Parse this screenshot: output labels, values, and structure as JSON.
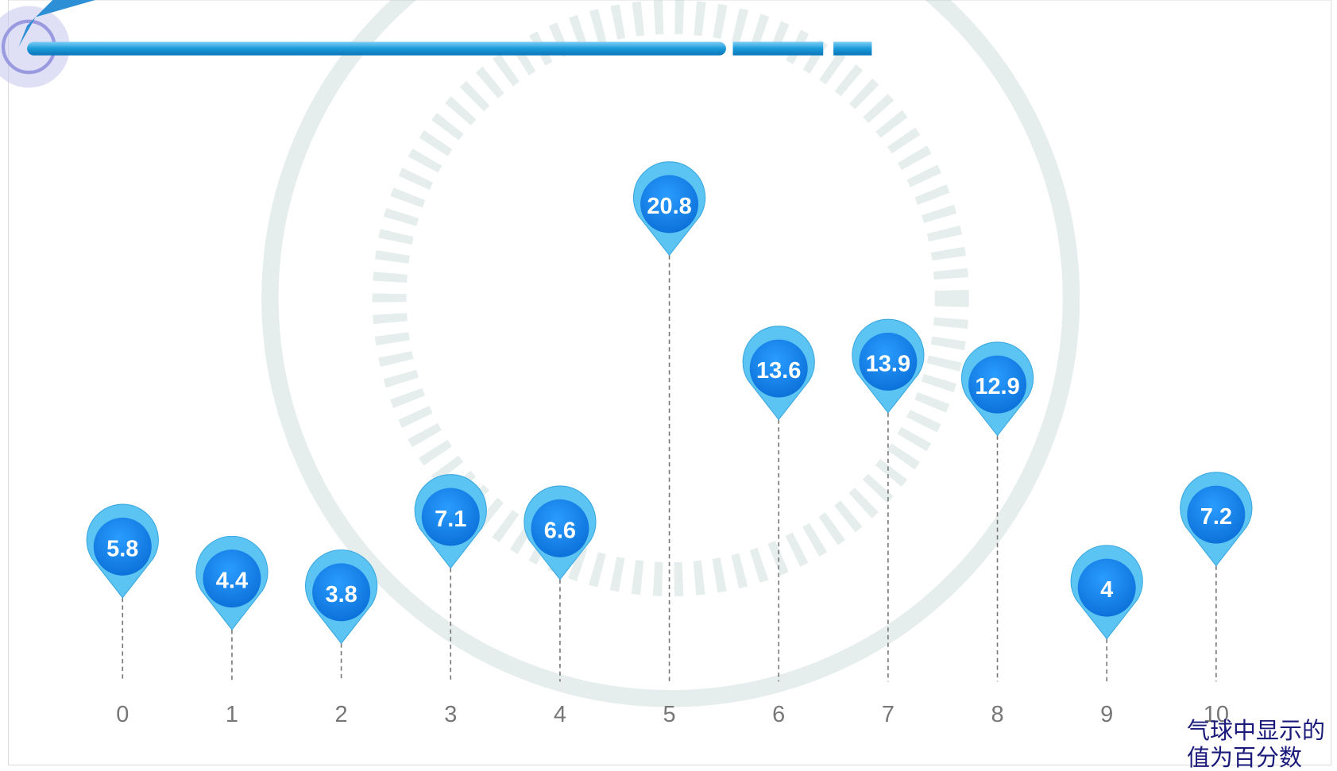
{
  "chart_data": {
    "type": "pin",
    "categories": [
      "0",
      "1",
      "2",
      "3",
      "4",
      "5",
      "6",
      "7",
      "8",
      "9",
      "10"
    ],
    "values": [
      5.8,
      4.4,
      3.8,
      7.1,
      6.6,
      20.8,
      13.6,
      13.9,
      12.9,
      4,
      7.2
    ],
    "color": "#0a86ee",
    "annotation": "气球中显示的值为百分数"
  }
}
